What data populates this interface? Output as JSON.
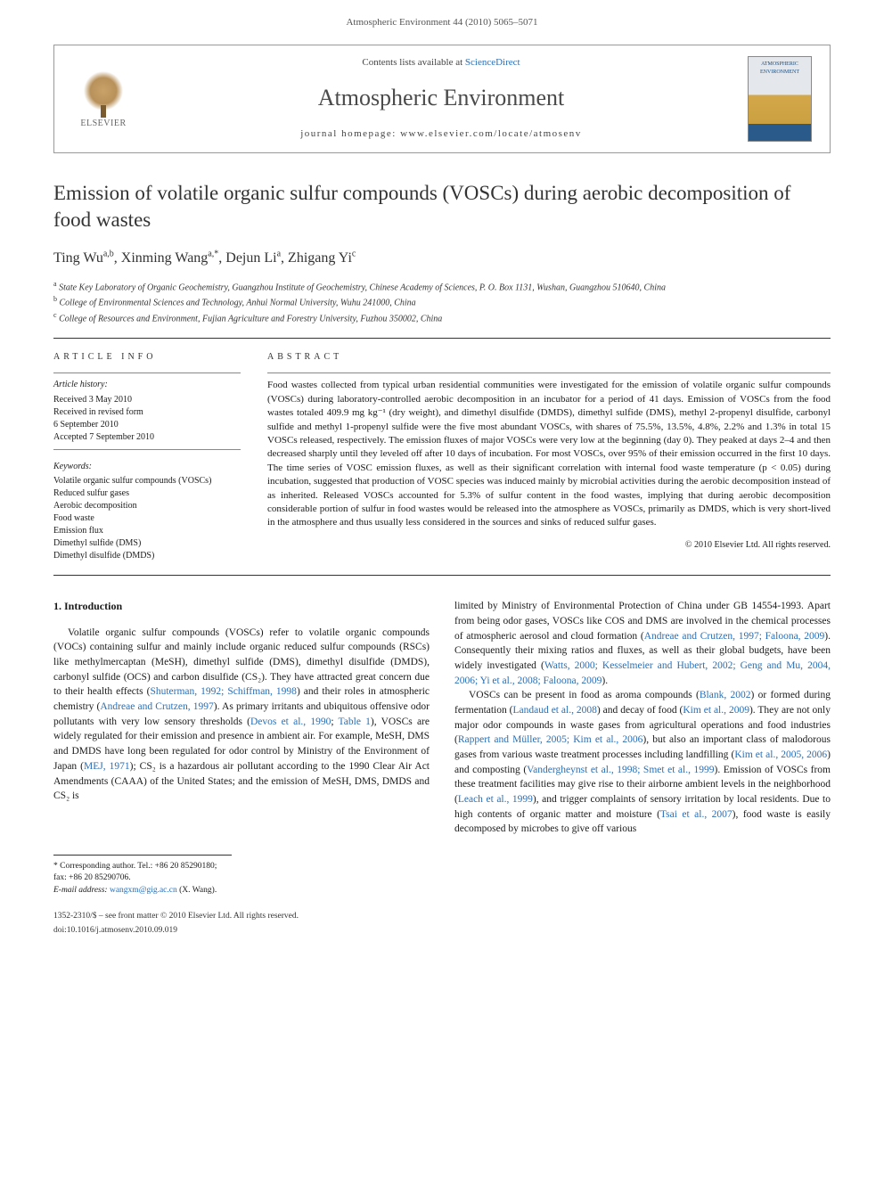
{
  "header_line": "Atmospheric Environment 44 (2010) 5065–5071",
  "journal_box": {
    "elsevier": "ELSEVIER",
    "contents_prefix": "Contents lists available at ",
    "contents_link": "ScienceDirect",
    "journal_name": "Atmospheric Environment",
    "homepage_prefix": "journal homepage: ",
    "homepage_url": "www.elsevier.com/locate/atmosenv",
    "cover_text": "ATMOSPHERIC ENVIRONMENT"
  },
  "title": "Emission of volatile organic sulfur compounds (VOSCs) during aerobic decomposition of food wastes",
  "authors_html": "Ting Wu<sup>a,b</sup>, Xinming Wang<sup>a,*</sup>, Dejun Li<sup>a</sup>, Zhigang Yi<sup>c</sup>",
  "affiliations": [
    "a State Key Laboratory of Organic Geochemistry, Guangzhou Institute of Geochemistry, Chinese Academy of Sciences, P. O. Box 1131, Wushan, Guangzhou 510640, China",
    "b College of Environmental Sciences and Technology, Anhui Normal University, Wuhu 241000, China",
    "c College of Resources and Environment, Fujian Agriculture and Forestry University, Fuzhou 350002, China"
  ],
  "article_info": {
    "head": "ARTICLE INFO",
    "history_head": "Article history:",
    "history": [
      "Received 3 May 2010",
      "Received in revised form",
      "6 September 2010",
      "Accepted 7 September 2010"
    ],
    "keywords_head": "Keywords:",
    "keywords": [
      "Volatile organic sulfur compounds (VOSCs)",
      "Reduced sulfur gases",
      "Aerobic decomposition",
      "Food waste",
      "Emission flux",
      "Dimethyl sulfide (DMS)",
      "Dimethyl disulfide (DMDS)"
    ]
  },
  "abstract": {
    "head": "ABSTRACT",
    "text": "Food wastes collected from typical urban residential communities were investigated for the emission of volatile organic sulfur compounds (VOSCs) during laboratory-controlled aerobic decomposition in an incubator for a period of 41 days. Emission of VOSCs from the food wastes totaled 409.9 mg kg⁻¹ (dry weight), and dimethyl disulfide (DMDS), dimethyl sulfide (DMS), methyl 2-propenyl disulfide, carbonyl sulfide and methyl 1-propenyl sulfide were the five most abundant VOSCs, with shares of 75.5%, 13.5%, 4.8%, 2.2% and 1.3% in total 15 VOSCs released, respectively. The emission fluxes of major VOSCs were very low at the beginning (day 0). They peaked at days 2–4 and then decreased sharply until they leveled off after 10 days of incubation. For most VOSCs, over 95% of their emission occurred in the first 10 days. The time series of VOSC emission fluxes, as well as their significant correlation with internal food waste temperature (p < 0.05) during incubation, suggested that production of VOSC species was induced mainly by microbial activities during the aerobic decomposition instead of as inherited. Released VOSCs accounted for 5.3% of sulfur content in the food wastes, implying that during aerobic decomposition considerable portion of sulfur in food wastes would be released into the atmosphere as VOSCs, primarily as DMDS, which is very short-lived in the atmosphere and thus usually less considered in the sources and sinks of reduced sulfur gases.",
    "copyright": "© 2010 Elsevier Ltd. All rights reserved."
  },
  "body": {
    "section_head": "1. Introduction",
    "left_paras": [
      "Volatile organic sulfur compounds (VOSCs) refer to volatile organic compounds (VOCs) containing sulfur and mainly include organic reduced sulfur compounds (RSCs) like methylmercaptan (MeSH), dimethyl sulfide (DMS), dimethyl disulfide (DMDS), carbonyl sulfide (OCS) and carbon disulfide (CS₂). They have attracted great concern due to their health effects (<span class=\"cite\">Shuterman, 1992; Schiffman, 1998</span>) and their roles in atmospheric chemistry (<span class=\"cite\">Andreae and Crutzen, 1997</span>). As primary irritants and ubiquitous offensive odor pollutants with very low sensory thresholds (<span class=\"cite\">Devos et al., 1990</span>; <span class=\"cite\">Table 1</span>), VOSCs are widely regulated for their emission and presence in ambient air. For example, MeSH, DMS and DMDS have long been regulated for odor control by Ministry of the Environment of Japan (<span class=\"cite\">MEJ, 1971</span>); CS₂ is a hazardous air pollutant according to the 1990 Clear Air Act Amendments (CAAA) of the United States; and the emission of MeSH, DMS, DMDS and CS₂ is"
    ],
    "right_paras": [
      "limited by Ministry of Environmental Protection of China under GB 14554-1993. Apart from being odor gases, VOSCs like COS and DMS are involved in the chemical processes of atmospheric aerosol and cloud formation (<span class=\"cite\">Andreae and Crutzen, 1997; Faloona, 2009</span>). Consequently their mixing ratios and fluxes, as well as their global budgets, have been widely investigated (<span class=\"cite\">Watts, 2000; Kesselmeier and Hubert, 2002; Geng and Mu, 2004, 2006; Yi et al., 2008; Faloona, 2009</span>).",
      "VOSCs can be present in food as aroma compounds (<span class=\"cite\">Blank, 2002</span>) or formed during fermentation (<span class=\"cite\">Landaud et al., 2008</span>) and decay of food (<span class=\"cite\">Kim et al., 2009</span>). They are not only major odor compounds in waste gases from agricultural operations and food industries (<span class=\"cite\">Rappert and Müller, 2005; Kim et al., 2006</span>), but also an important class of malodorous gases from various waste treatment processes including landfilling (<span class=\"cite\">Kim et al., 2005, 2006</span>) and composting (<span class=\"cite\">Vandergheynst et al., 1998; Smet et al., 1999</span>). Emission of VOSCs from these treatment facilities may give rise to their airborne ambient levels in the neighborhood (<span class=\"cite\">Leach et al., 1999</span>), and trigger complaints of sensory irritation by local residents. Due to high contents of organic matter and moisture (<span class=\"cite\">Tsai et al., 2007</span>), food waste is easily decomposed by microbes to give off various"
    ]
  },
  "footnotes": {
    "corr": "* Corresponding author. Tel.: +86 20 85290180; fax: +86 20 85290706.",
    "email_label": "E-mail address: ",
    "email": "wangxm@gig.ac.cn",
    "email_suffix": " (X. Wang)."
  },
  "footer": {
    "line1": "1352-2310/$ – see front matter © 2010 Elsevier Ltd. All rights reserved.",
    "doi": "doi:10.1016/j.atmosenv.2010.09.019"
  },
  "colors": {
    "link": "#2a6fb5",
    "text": "#1a1a1a",
    "rule": "#333333"
  }
}
